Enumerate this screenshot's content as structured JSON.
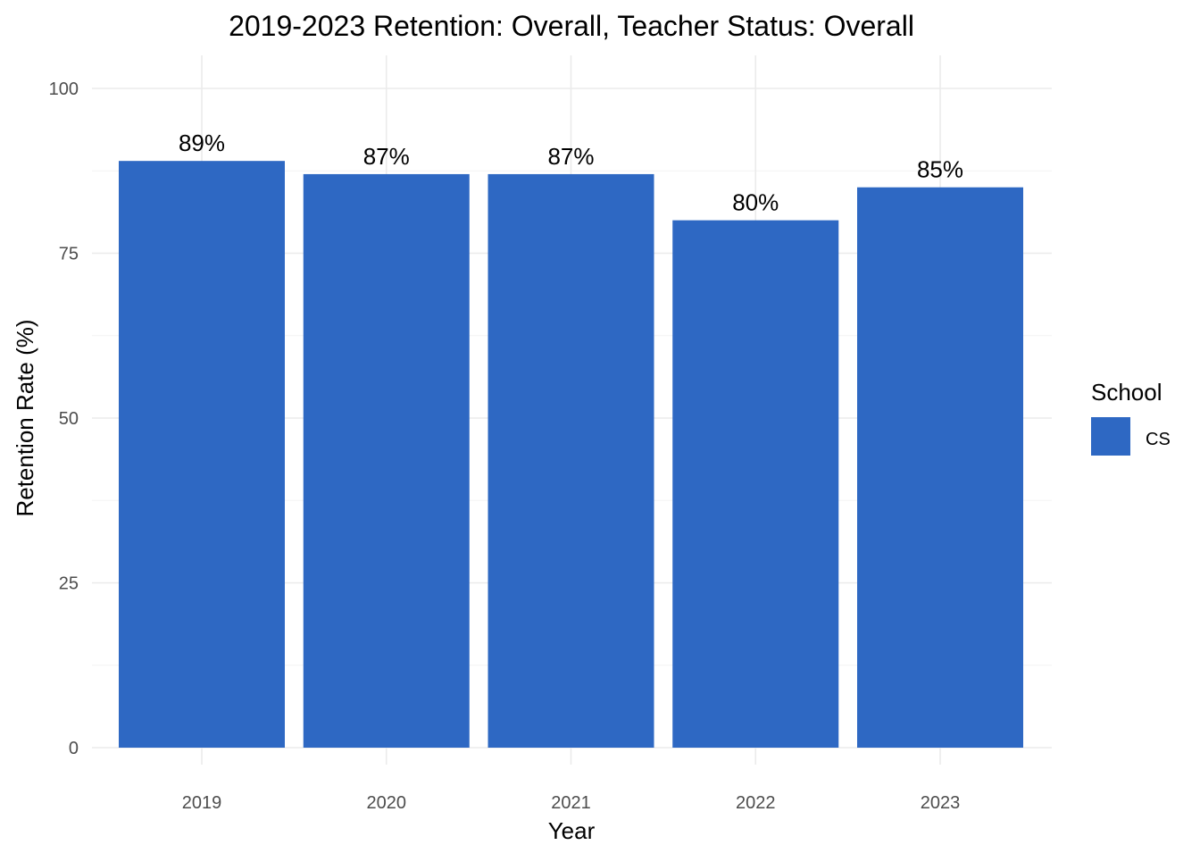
{
  "chart_data": {
    "type": "bar",
    "title": "2019-2023 Retention: Overall, Teacher Status: Overall",
    "xlabel": "Year",
    "ylabel": "Retention Rate (%)",
    "categories": [
      "2019",
      "2020",
      "2021",
      "2022",
      "2023"
    ],
    "series": [
      {
        "name": "CS",
        "values": [
          89,
          87,
          87,
          80,
          85
        ],
        "labels": [
          "89%",
          "87%",
          "87%",
          "80%",
          "85%"
        ],
        "color": "#2e68c3"
      }
    ],
    "ylim": [
      0,
      100
    ],
    "yticks": [
      0,
      25,
      50,
      75,
      100
    ],
    "ytick_labels": [
      "0",
      "25",
      "50",
      "75",
      "100"
    ],
    "grid": true,
    "legend": {
      "title": "School",
      "position": "right"
    }
  }
}
